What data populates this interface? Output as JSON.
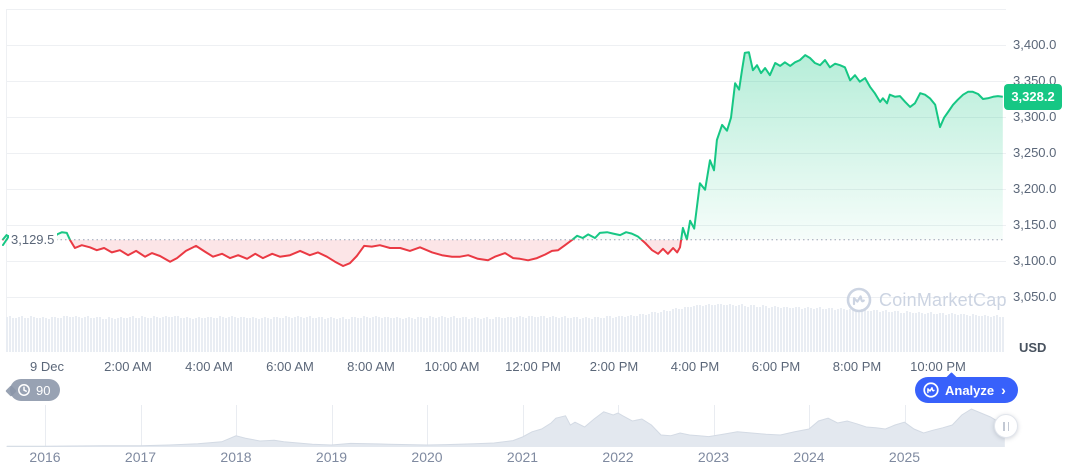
{
  "colors": {
    "up": "#16c784",
    "down": "#ea3943",
    "up_fill_top": "rgba(22,199,132,0.32)",
    "up_fill_bottom": "rgba(22,199,132,0.04)",
    "down_fill": "rgba(234,57,67,0.13)",
    "accent_blue": "#3861fb",
    "grid": "#eef0f3",
    "axis_text": "#5b6779"
  },
  "watermark": {
    "label": "CoinMarketCap"
  },
  "history_badge": {
    "label": "90"
  },
  "analyze_button": {
    "label": "Analyze",
    "chevron": "›"
  },
  "chart_data": {
    "type": "line",
    "title": "",
    "unit_label": "USD",
    "legend": "none",
    "grid": "horizontal",
    "current_price_label": "3,328.2",
    "current_price": 3328.2,
    "baseline": {
      "value": 3129.5,
      "label": "3,129.5"
    },
    "y_axis": {
      "ticks": [
        "3,400.0",
        "3,350.0",
        "3,300.0",
        "3,250.0",
        "3,200.0",
        "3,150.0",
        "3,100.0",
        "3,050.0"
      ],
      "tick_values": [
        3400,
        3350,
        3300,
        3250,
        3200,
        3150,
        3100,
        3050
      ],
      "ylim": [
        2975,
        3450
      ]
    },
    "x_axis": {
      "ticks": [
        "9 Dec",
        "2:00 AM",
        "4:00 AM",
        "6:00 AM",
        "8:00 AM",
        "10:00 AM",
        "12:00 PM",
        "2:00 PM",
        "4:00 PM",
        "6:00 PM",
        "8:00 PM",
        "10:00 PM"
      ],
      "tick_hours": [
        0,
        2,
        4,
        6,
        8,
        10,
        12,
        14,
        16,
        18,
        20,
        22
      ]
    },
    "price_series": {
      "name": "price_usd_vs_hour",
      "points": [
        [
          -1.1,
          3129
        ],
        [
          -1.0,
          3136
        ],
        [
          -0.85,
          3130
        ],
        [
          -0.6,
          3127
        ],
        [
          -0.3,
          3125
        ],
        [
          0.0,
          3126
        ],
        [
          0.12,
          3129
        ],
        [
          0.25,
          3137
        ],
        [
          0.37,
          3140
        ],
        [
          0.49,
          3139
        ],
        [
          0.57,
          3129
        ],
        [
          0.69,
          3118
        ],
        [
          0.86,
          3122
        ],
        [
          1.06,
          3119
        ],
        [
          1.23,
          3115
        ],
        [
          1.41,
          3118
        ],
        [
          1.6,
          3112
        ],
        [
          1.8,
          3115
        ],
        [
          2.0,
          3108
        ],
        [
          2.2,
          3114
        ],
        [
          2.42,
          3106
        ],
        [
          2.59,
          3111
        ],
        [
          2.79,
          3107
        ],
        [
          3.04,
          3099
        ],
        [
          3.21,
          3104
        ],
        [
          3.43,
          3114
        ],
        [
          3.68,
          3121
        ],
        [
          3.9,
          3113
        ],
        [
          4.1,
          3106
        ],
        [
          4.32,
          3110
        ],
        [
          4.52,
          3104
        ],
        [
          4.72,
          3108
        ],
        [
          4.94,
          3103
        ],
        [
          5.14,
          3110
        ],
        [
          5.33,
          3104
        ],
        [
          5.56,
          3110
        ],
        [
          5.75,
          3106
        ],
        [
          6.0,
          3108
        ],
        [
          6.25,
          3114
        ],
        [
          6.49,
          3108
        ],
        [
          6.69,
          3112
        ],
        [
          6.91,
          3106
        ],
        [
          7.11,
          3099
        ],
        [
          7.31,
          3093
        ],
        [
          7.48,
          3097
        ],
        [
          7.65,
          3107
        ],
        [
          7.83,
          3121
        ],
        [
          8.02,
          3120
        ],
        [
          8.22,
          3122
        ],
        [
          8.47,
          3118
        ],
        [
          8.72,
          3118
        ],
        [
          8.96,
          3114
        ],
        [
          9.21,
          3119
        ],
        [
          9.51,
          3112
        ],
        [
          9.75,
          3108
        ],
        [
          10.0,
          3106
        ],
        [
          10.2,
          3106
        ],
        [
          10.4,
          3108
        ],
        [
          10.64,
          3103
        ],
        [
          10.89,
          3101
        ],
        [
          11.06,
          3106
        ],
        [
          11.31,
          3111
        ],
        [
          11.51,
          3104
        ],
        [
          11.68,
          3103
        ],
        [
          11.88,
          3101
        ],
        [
          12.1,
          3104
        ],
        [
          12.3,
          3109
        ],
        [
          12.47,
          3114
        ],
        [
          12.62,
          3115
        ],
        [
          12.79,
          3122
        ],
        [
          12.96,
          3129
        ],
        [
          13.09,
          3135
        ],
        [
          13.23,
          3132
        ],
        [
          13.36,
          3137
        ],
        [
          13.53,
          3132
        ],
        [
          13.65,
          3139
        ],
        [
          13.83,
          3140
        ],
        [
          13.98,
          3138
        ],
        [
          14.15,
          3136
        ],
        [
          14.3,
          3140
        ],
        [
          14.44,
          3138
        ],
        [
          14.59,
          3134
        ],
        [
          14.77,
          3125
        ],
        [
          14.94,
          3115
        ],
        [
          15.09,
          3110
        ],
        [
          15.21,
          3117
        ],
        [
          15.33,
          3110
        ],
        [
          15.46,
          3118
        ],
        [
          15.56,
          3112
        ],
        [
          15.63,
          3119
        ],
        [
          15.7,
          3146
        ],
        [
          15.8,
          3130
        ],
        [
          15.88,
          3156
        ],
        [
          15.98,
          3145
        ],
        [
          16.12,
          3208
        ],
        [
          16.25,
          3199
        ],
        [
          16.37,
          3240
        ],
        [
          16.47,
          3226
        ],
        [
          16.54,
          3268
        ],
        [
          16.67,
          3289
        ],
        [
          16.79,
          3281
        ],
        [
          16.89,
          3299
        ],
        [
          16.99,
          3347
        ],
        [
          17.09,
          3338
        ],
        [
          17.16,
          3365
        ],
        [
          17.23,
          3389
        ],
        [
          17.33,
          3390
        ],
        [
          17.43,
          3365
        ],
        [
          17.53,
          3372
        ],
        [
          17.63,
          3361
        ],
        [
          17.73,
          3368
        ],
        [
          17.85,
          3358
        ],
        [
          17.98,
          3375
        ],
        [
          18.1,
          3371
        ],
        [
          18.22,
          3376
        ],
        [
          18.35,
          3371
        ],
        [
          18.47,
          3376
        ],
        [
          18.59,
          3379
        ],
        [
          18.72,
          3386
        ],
        [
          18.84,
          3382
        ],
        [
          18.96,
          3375
        ],
        [
          19.09,
          3372
        ],
        [
          19.21,
          3379
        ],
        [
          19.33,
          3369
        ],
        [
          19.46,
          3374
        ],
        [
          19.58,
          3372
        ],
        [
          19.7,
          3369
        ],
        [
          19.83,
          3351
        ],
        [
          19.95,
          3358
        ],
        [
          20.07,
          3349
        ],
        [
          20.2,
          3354
        ],
        [
          20.32,
          3342
        ],
        [
          20.44,
          3333
        ],
        [
          20.57,
          3321
        ],
        [
          20.64,
          3326
        ],
        [
          20.74,
          3319
        ],
        [
          20.81,
          3331
        ],
        [
          20.94,
          3328
        ],
        [
          21.06,
          3329
        ],
        [
          21.19,
          3321
        ],
        [
          21.31,
          3314
        ],
        [
          21.43,
          3319
        ],
        [
          21.56,
          3333
        ],
        [
          21.68,
          3331
        ],
        [
          21.8,
          3326
        ],
        [
          21.93,
          3317
        ],
        [
          22.05,
          3286
        ],
        [
          22.15,
          3299
        ],
        [
          22.25,
          3307
        ],
        [
          22.37,
          3317
        ],
        [
          22.49,
          3324
        ],
        [
          22.62,
          3331
        ],
        [
          22.74,
          3335
        ],
        [
          22.86,
          3335
        ],
        [
          22.99,
          3332
        ],
        [
          23.11,
          3325
        ],
        [
          23.23,
          3326
        ],
        [
          23.36,
          3328
        ],
        [
          23.48,
          3329
        ],
        [
          23.6,
          3328.2
        ]
      ]
    },
    "volume_series": {
      "name": "volume_relative_half_hourly",
      "values": [
        0.72,
        0.73,
        0.71,
        0.74,
        0.72,
        0.7,
        0.73,
        0.72,
        0.74,
        0.71,
        0.72,
        0.73,
        0.71,
        0.72,
        0.74,
        0.72,
        0.7,
        0.72,
        0.73,
        0.71,
        0.72,
        0.73,
        0.72,
        0.7,
        0.72,
        0.73,
        0.74,
        0.72,
        0.71,
        0.73,
        0.75,
        0.8,
        0.88,
        0.95,
        1.0,
        0.98,
        0.96,
        0.94,
        0.92,
        0.92,
        0.9,
        0.88,
        0.86,
        0.84,
        0.82,
        0.8,
        0.78,
        0.76,
        0.74
      ]
    },
    "navigator": {
      "years": [
        "2016",
        "2017",
        "2018",
        "2019",
        "2020",
        "2021",
        "2022",
        "2023",
        "2024",
        "2025"
      ],
      "points": [
        [
          2015.6,
          0.02
        ],
        [
          2016.0,
          0.02
        ],
        [
          2016.3,
          0.025
        ],
        [
          2016.6,
          0.03
        ],
        [
          2017.0,
          0.03
        ],
        [
          2017.3,
          0.05
        ],
        [
          2017.6,
          0.08
        ],
        [
          2017.85,
          0.13
        ],
        [
          2018.0,
          0.28
        ],
        [
          2018.1,
          0.22
        ],
        [
          2018.25,
          0.15
        ],
        [
          2018.4,
          0.17
        ],
        [
          2018.5,
          0.13
        ],
        [
          2018.65,
          0.1
        ],
        [
          2018.8,
          0.07
        ],
        [
          2019.0,
          0.05
        ],
        [
          2019.2,
          0.09
        ],
        [
          2019.4,
          0.08
        ],
        [
          2019.6,
          0.07
        ],
        [
          2019.8,
          0.06
        ],
        [
          2020.0,
          0.05
        ],
        [
          2020.2,
          0.06
        ],
        [
          2020.5,
          0.08
        ],
        [
          2020.7,
          0.1
        ],
        [
          2020.9,
          0.16
        ],
        [
          2021.0,
          0.25
        ],
        [
          2021.1,
          0.38
        ],
        [
          2021.2,
          0.45
        ],
        [
          2021.3,
          0.6
        ],
        [
          2021.35,
          0.72
        ],
        [
          2021.45,
          0.78
        ],
        [
          2021.5,
          0.55
        ],
        [
          2021.55,
          0.62
        ],
        [
          2021.65,
          0.5
        ],
        [
          2021.75,
          0.7
        ],
        [
          2021.85,
          0.88
        ],
        [
          2021.95,
          0.8
        ],
        [
          2022.0,
          0.85
        ],
        [
          2022.05,
          0.78
        ],
        [
          2022.15,
          0.65
        ],
        [
          2022.25,
          0.7
        ],
        [
          2022.35,
          0.55
        ],
        [
          2022.45,
          0.3
        ],
        [
          2022.55,
          0.28
        ],
        [
          2022.65,
          0.35
        ],
        [
          2022.75,
          0.3
        ],
        [
          2022.85,
          0.28
        ],
        [
          2022.95,
          0.26
        ],
        [
          2023.1,
          0.32
        ],
        [
          2023.25,
          0.38
        ],
        [
          2023.4,
          0.35
        ],
        [
          2023.55,
          0.32
        ],
        [
          2023.7,
          0.3
        ],
        [
          2023.85,
          0.38
        ],
        [
          2024.0,
          0.45
        ],
        [
          2024.1,
          0.65
        ],
        [
          2024.2,
          0.72
        ],
        [
          2024.3,
          0.6
        ],
        [
          2024.4,
          0.65
        ],
        [
          2024.5,
          0.58
        ],
        [
          2024.6,
          0.5
        ],
        [
          2024.7,
          0.48
        ],
        [
          2024.8,
          0.45
        ],
        [
          2024.9,
          0.55
        ],
        [
          2025.0,
          0.62
        ],
        [
          2025.1,
          0.45
        ],
        [
          2025.2,
          0.35
        ],
        [
          2025.3,
          0.42
        ],
        [
          2025.4,
          0.48
        ],
        [
          2025.5,
          0.55
        ],
        [
          2025.6,
          0.8
        ],
        [
          2025.7,
          0.95
        ],
        [
          2025.8,
          0.85
        ],
        [
          2025.9,
          0.75
        ],
        [
          2025.95,
          0.68
        ],
        [
          2026.05,
          0.6
        ]
      ]
    }
  }
}
